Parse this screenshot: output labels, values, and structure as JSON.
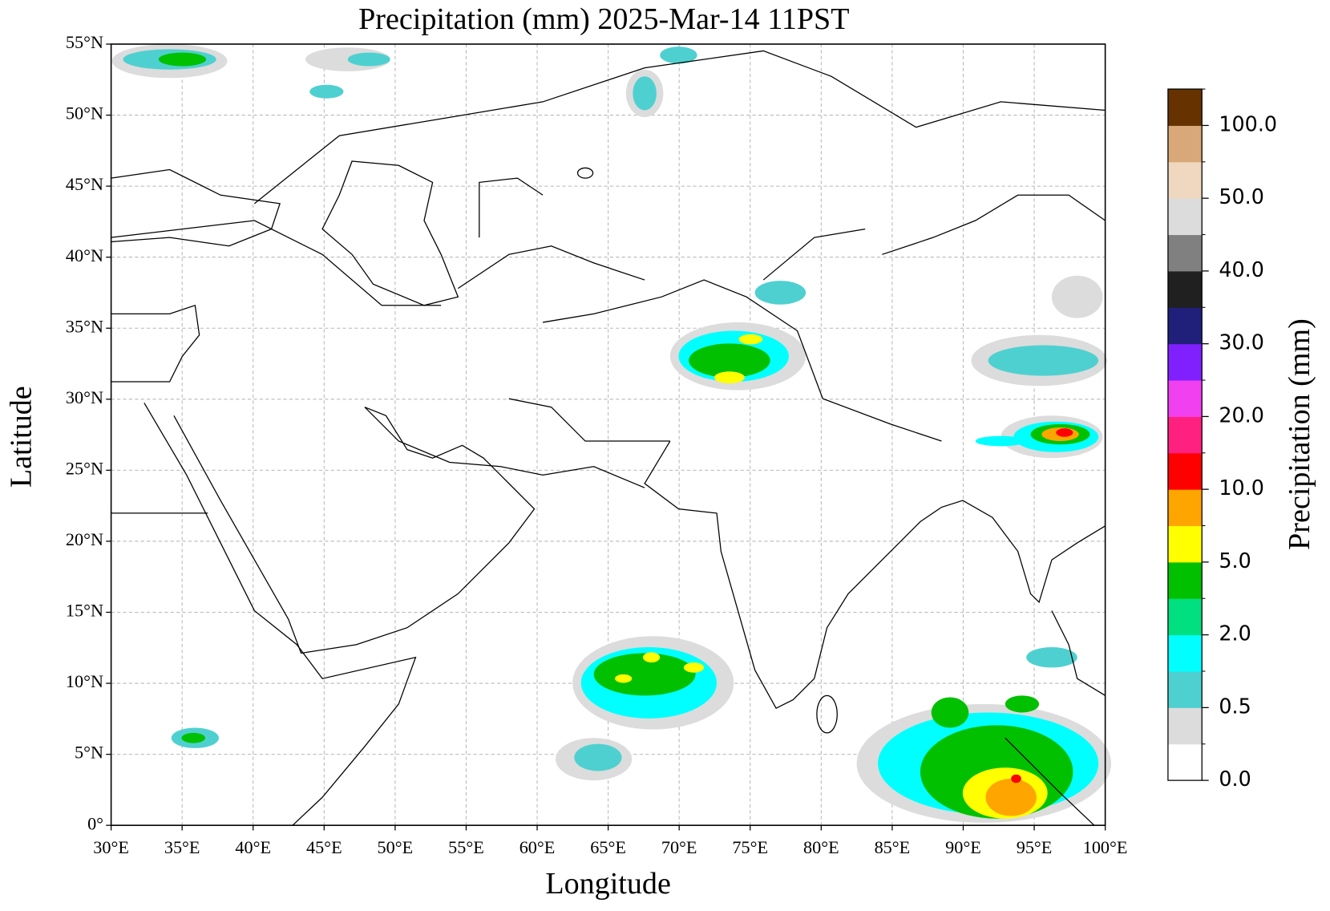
{
  "chart_data": {
    "type": "map",
    "title": "Precipitation (mm)  2025-Mar-14 11PST",
    "x_label": "Longitude",
    "y_label": "Latitude",
    "xlim": [
      30,
      100
    ],
    "ylim": [
      0,
      55
    ],
    "xticks": [
      {
        "value": 30,
        "label": "30°E"
      },
      {
        "value": 35,
        "label": "35°E"
      },
      {
        "value": 40,
        "label": "40°E"
      },
      {
        "value": 45,
        "label": "45°E"
      },
      {
        "value": 50,
        "label": "50°E"
      },
      {
        "value": 55,
        "label": "55°E"
      },
      {
        "value": 60,
        "label": "60°E"
      },
      {
        "value": 65,
        "label": "65°E"
      },
      {
        "value": 70,
        "label": "70°E"
      },
      {
        "value": 75,
        "label": "75°E"
      },
      {
        "value": 80,
        "label": "80°E"
      },
      {
        "value": 85,
        "label": "85°E"
      },
      {
        "value": 90,
        "label": "90°E"
      },
      {
        "value": 95,
        "label": "95°E"
      },
      {
        "value": 100,
        "label": "100°E"
      }
    ],
    "yticks": [
      {
        "value": 0,
        "label": "0°"
      },
      {
        "value": 5,
        "label": "5°N"
      },
      {
        "value": 10,
        "label": "10°N"
      },
      {
        "value": 15,
        "label": "15°N"
      },
      {
        "value": 20,
        "label": "20°N"
      },
      {
        "value": 25,
        "label": "25°N"
      },
      {
        "value": 30,
        "label": "30°N"
      },
      {
        "value": 35,
        "label": "35°N"
      },
      {
        "value": 40,
        "label": "40°N"
      },
      {
        "value": 45,
        "label": "45°N"
      },
      {
        "value": 50,
        "label": "50°N"
      },
      {
        "value": 55,
        "label": "55°N"
      }
    ],
    "grid": true,
    "colorbar": {
      "label": "Precipitation (mm)",
      "colors": [
        "#ffffff",
        "#dcdcdc",
        "#4fd0d0",
        "#00ffff",
        "#00e080",
        "#00c000",
        "#ffff00",
        "#ffa500",
        "#ff0000",
        "#ff2080",
        "#f040f0",
        "#8020ff",
        "#20207a",
        "#202020",
        "#808080",
        "#dcdcdc",
        "#f0d8c0",
        "#d8a878",
        "#663300"
      ],
      "ticks": [
        {
          "value": 0,
          "label": "0.0"
        },
        {
          "value": 0.5,
          "label": "0.5"
        },
        {
          "value": 2,
          "label": "2.0"
        },
        {
          "value": 5,
          "label": "5.0"
        },
        {
          "value": 10,
          "label": "10.0"
        },
        {
          "value": 20,
          "label": "20.0"
        },
        {
          "value": 30,
          "label": "30.0"
        },
        {
          "value": 40,
          "label": "40.0"
        },
        {
          "value": 50,
          "label": "50.0"
        },
        {
          "value": 100,
          "label": "100.0"
        }
      ]
    }
  }
}
